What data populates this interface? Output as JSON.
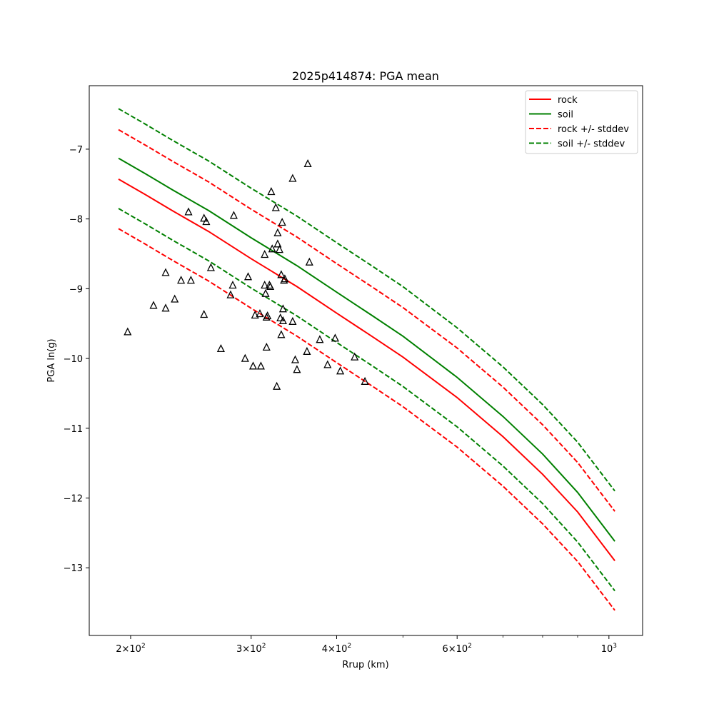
{
  "chart_data": {
    "type": "line",
    "title": "2025p414874: PGA mean",
    "xlabel": "Rrup (km)",
    "ylabel": "PGA ln(g)",
    "xscale": "log",
    "xlim": [
      174,
      1120
    ],
    "ylim": [
      -13.97,
      -6.09
    ],
    "x_ticks": [
      {
        "value": 200,
        "mantissa": "2",
        "exp": "2"
      },
      {
        "value": 300,
        "mantissa": "3",
        "exp": "2"
      },
      {
        "value": 400,
        "mantissa": "4",
        "exp": "2"
      },
      {
        "value": 600,
        "mantissa": "6",
        "exp": "2"
      },
      {
        "value": 1000,
        "mantissa": "10",
        "exp": "3"
      }
    ],
    "x_minor_ticks": [
      500,
      700,
      800,
      900
    ],
    "y_ticks": [
      -13,
      -12,
      -11,
      -10,
      -9,
      -8,
      -7
    ],
    "grid": false,
    "legend_position": "top-right",
    "series": [
      {
        "name": "rock",
        "color": "#ff0000",
        "dash": "solid",
        "x": [
          192,
          210,
          230,
          260,
          300,
          350,
          400,
          450,
          500,
          600,
          700,
          800,
          900,
          1020
        ],
        "y": [
          -7.43,
          -7.65,
          -7.88,
          -8.18,
          -8.57,
          -8.97,
          -9.35,
          -9.68,
          -9.98,
          -10.56,
          -11.12,
          -11.66,
          -12.2,
          -12.9
        ]
      },
      {
        "name": "soil",
        "color": "#008000",
        "dash": "solid",
        "x": [
          192,
          210,
          230,
          260,
          300,
          350,
          400,
          450,
          500,
          600,
          700,
          800,
          900,
          1020
        ],
        "y": [
          -7.13,
          -7.35,
          -7.58,
          -7.88,
          -8.27,
          -8.67,
          -9.05,
          -9.38,
          -9.68,
          -10.27,
          -10.83,
          -11.37,
          -11.92,
          -12.62
        ]
      },
      {
        "name": "rock +/- stddev",
        "color": "#ff0000",
        "dash": "dashed",
        "x": [
          192,
          210,
          230,
          260,
          300,
          350,
          400,
          450,
          500,
          600,
          700,
          800,
          900,
          1020
        ],
        "y": [
          -6.72,
          -6.94,
          -7.17,
          -7.47,
          -7.86,
          -8.26,
          -8.64,
          -8.97,
          -9.27,
          -9.85,
          -10.41,
          -10.95,
          -11.49,
          -12.19
        ]
      },
      {
        "color": "#ff0000",
        "dash": "dashed",
        "x": [
          192,
          210,
          230,
          260,
          300,
          350,
          400,
          450,
          500,
          600,
          700,
          800,
          900,
          1020
        ],
        "y": [
          -8.14,
          -8.36,
          -8.59,
          -8.89,
          -9.28,
          -9.68,
          -10.06,
          -10.39,
          -10.69,
          -11.27,
          -11.83,
          -12.37,
          -12.91,
          -13.61
        ]
      },
      {
        "name": "soil +/- stddev",
        "color": "#008000",
        "dash": "dashed",
        "x": [
          192,
          210,
          230,
          260,
          300,
          350,
          400,
          450,
          500,
          600,
          700,
          800,
          900,
          1020
        ],
        "y": [
          -6.42,
          -6.64,
          -6.87,
          -7.17,
          -7.56,
          -7.96,
          -8.34,
          -8.67,
          -8.97,
          -9.56,
          -10.12,
          -10.66,
          -11.2,
          -11.9
        ]
      },
      {
        "color": "#008000",
        "dash": "dashed",
        "x": [
          192,
          210,
          230,
          260,
          300,
          350,
          400,
          450,
          500,
          600,
          700,
          800,
          900,
          1020
        ],
        "y": [
          -7.85,
          -8.07,
          -8.3,
          -8.6,
          -8.99,
          -9.39,
          -9.77,
          -10.1,
          -10.4,
          -10.98,
          -11.54,
          -12.08,
          -12.63,
          -13.33
        ]
      }
    ],
    "observations": {
      "marker": "triangle",
      "color": "#000000",
      "points": [
        [
          198,
          -9.62
        ],
        [
          216,
          -9.24
        ],
        [
          225,
          -8.77
        ],
        [
          225,
          -9.28
        ],
        [
          232,
          -9.15
        ],
        [
          237,
          -8.88
        ],
        [
          243,
          -7.9
        ],
        [
          245,
          -8.88
        ],
        [
          256,
          -7.99
        ],
        [
          256,
          -9.37
        ],
        [
          258,
          -8.04
        ],
        [
          262,
          -8.7
        ],
        [
          271,
          -9.86
        ],
        [
          280,
          -9.09
        ],
        [
          282,
          -8.95
        ],
        [
          283,
          -7.95
        ],
        [
          294,
          -10.0
        ],
        [
          297,
          -8.83
        ],
        [
          302,
          -10.11
        ],
        [
          304,
          -9.38
        ],
        [
          309,
          -9.36
        ],
        [
          310,
          -10.11
        ],
        [
          314,
          -8.51
        ],
        [
          314,
          -8.95
        ],
        [
          315,
          -9.07
        ],
        [
          316,
          -9.41
        ],
        [
          316,
          -9.84
        ],
        [
          317,
          -9.39
        ],
        [
          319,
          -8.95
        ],
        [
          320,
          -8.97
        ],
        [
          321,
          -7.61
        ],
        [
          322,
          -8.43
        ],
        [
          326,
          -7.84
        ],
        [
          327,
          -10.4
        ],
        [
          328,
          -8.2
        ],
        [
          328,
          -8.36
        ],
        [
          330,
          -8.44
        ],
        [
          331,
          -9.42
        ],
        [
          332,
          -8.8
        ],
        [
          332,
          -9.66
        ],
        [
          333,
          -8.05
        ],
        [
          334,
          -9.29
        ],
        [
          334,
          -9.46
        ],
        [
          335,
          -8.88
        ],
        [
          336,
          -8.86
        ],
        [
          345,
          -7.42
        ],
        [
          345,
          -9.47
        ],
        [
          348,
          -10.02
        ],
        [
          350,
          -10.16
        ],
        [
          362,
          -9.9
        ],
        [
          363,
          -7.21
        ],
        [
          365,
          -8.62
        ],
        [
          378,
          -9.73
        ],
        [
          388,
          -10.09
        ],
        [
          398,
          -9.71
        ],
        [
          405,
          -10.18
        ],
        [
          425,
          -9.98
        ],
        [
          440,
          -10.33
        ]
      ]
    }
  }
}
